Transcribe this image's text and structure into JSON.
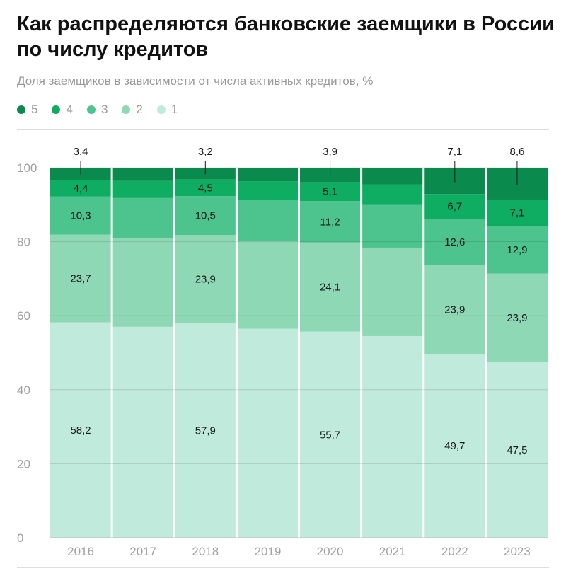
{
  "title": "Как распределяются банковские заемщики в России по числу кредитов",
  "subtitle": "Доля заемщиков в зависимости от числа активных кредитов, %",
  "legend": [
    {
      "label": "5",
      "color": "#0a8a4d"
    },
    {
      "label": "4",
      "color": "#0fad62"
    },
    {
      "label": "3",
      "color": "#4dc48e"
    },
    {
      "label": "2",
      "color": "#8fd8b5"
    },
    {
      "label": "1",
      "color": "#c0eadb"
    }
  ],
  "chart_data": {
    "type": "bar",
    "stacked": true,
    "categories": [
      "2016",
      "2017",
      "2018",
      "2019",
      "2020",
      "2021",
      "2022",
      "2023"
    ],
    "series": [
      {
        "name": "1",
        "color": "#c0eadb",
        "values": [
          58.2,
          57.0,
          57.9,
          56.5,
          55.7,
          54.5,
          49.7,
          47.5
        ]
      },
      {
        "name": "2",
        "color": "#8fd8b5",
        "values": [
          23.7,
          24.0,
          23.9,
          23.8,
          24.1,
          23.9,
          23.9,
          23.9
        ]
      },
      {
        "name": "3",
        "color": "#4dc48e",
        "values": [
          10.3,
          10.8,
          10.5,
          11.0,
          11.2,
          11.5,
          12.6,
          12.9
        ]
      },
      {
        "name": "4",
        "color": "#0fad62",
        "values": [
          4.4,
          4.6,
          4.5,
          5.0,
          5.1,
          5.6,
          6.7,
          7.1
        ]
      },
      {
        "name": "5",
        "color": "#0a8a4d",
        "values": [
          3.4,
          3.6,
          3.2,
          3.7,
          3.9,
          4.5,
          7.1,
          8.6
        ]
      }
    ],
    "labels": {
      "2016": [
        "58,2",
        "23,7",
        "10,3",
        "4,4",
        "3,4"
      ],
      "2018": [
        "57,9",
        "23,9",
        "10,5",
        "4,5",
        "3,2"
      ],
      "2020": [
        "55,7",
        "24,1",
        "11,2",
        "5,1",
        "3,9"
      ],
      "2022": [
        "49,7",
        "23,9",
        "12,6",
        "6,7",
        "7,1"
      ],
      "2023": [
        "47,5",
        "23,9",
        "12,9",
        "7,1",
        "8,6"
      ]
    },
    "yticks": [
      0,
      20,
      40,
      60,
      80,
      100
    ],
    "ylim": [
      0,
      100
    ],
    "grid": true,
    "legend_position": "top-left"
  }
}
